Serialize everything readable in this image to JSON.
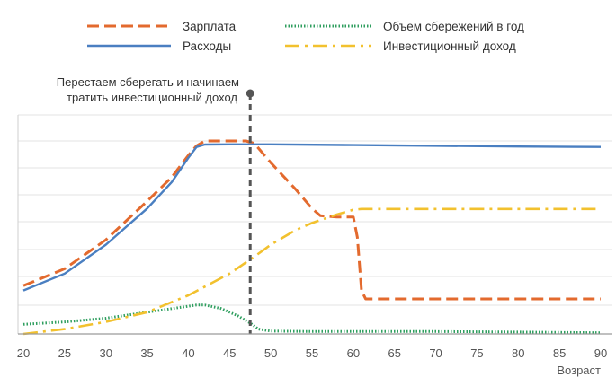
{
  "chart_data": {
    "type": "line",
    "xlabel": "Возраст",
    "ylabel": "",
    "xlim": [
      20,
      91
    ],
    "x_ticks": [
      20,
      25,
      30,
      35,
      40,
      45,
      50,
      55,
      60,
      65,
      70,
      75,
      80,
      85,
      90
    ],
    "ylim": [
      0,
      8
    ],
    "grid": true,
    "legend_position": "top",
    "annotation": {
      "x": 47.5,
      "text_lines": [
        "Перестаем сберегать и начинаем",
        "тратить инвестиционный доход"
      ]
    },
    "series": [
      {
        "name": "Зарплата",
        "color": "#e36a2e",
        "style": "dashed",
        "x": [
          20,
          25,
          30,
          35,
          38,
          40,
          41,
          42,
          45,
          47,
          48,
          50,
          53,
          55,
          56,
          58,
          60,
          60.5,
          61,
          61.5,
          65,
          70,
          80,
          90
        ],
        "y": [
          2.0,
          2.7,
          3.9,
          5.5,
          6.5,
          7.4,
          7.8,
          8.0,
          8.0,
          8.0,
          7.9,
          7.1,
          6.0,
          5.2,
          4.9,
          4.85,
          4.85,
          4.0,
          1.8,
          1.45,
          1.45,
          1.45,
          1.45,
          1.45
        ]
      },
      {
        "name": "Расходы",
        "color": "#4a7fc1",
        "style": "solid",
        "x": [
          20,
          25,
          30,
          35,
          38,
          40,
          41,
          42,
          45,
          50,
          60,
          70,
          80,
          90
        ],
        "y": [
          1.8,
          2.5,
          3.7,
          5.2,
          6.3,
          7.3,
          7.75,
          7.85,
          7.86,
          7.86,
          7.83,
          7.8,
          7.77,
          7.75
        ]
      },
      {
        "name": "Объем сбережений в год",
        "color": "#2e9e5e",
        "style": "dotted",
        "x": [
          20,
          25,
          30,
          35,
          38,
          40,
          41,
          42,
          44,
          46,
          47.5,
          48.5,
          50,
          55,
          60,
          70,
          80,
          90
        ],
        "y": [
          0.4,
          0.5,
          0.65,
          0.9,
          1.05,
          1.15,
          1.2,
          1.2,
          1.05,
          0.75,
          0.45,
          0.2,
          0.12,
          0.1,
          0.1,
          0.1,
          0.08,
          0.05
        ]
      },
      {
        "name": "Инвестиционный доход",
        "color": "#f2c12e",
        "style": "dashdot",
        "x": [
          20,
          25,
          30,
          35,
          40,
          45,
          48,
          50,
          53,
          55,
          58,
          60,
          61,
          65,
          70,
          80,
          90
        ],
        "y": [
          0.0,
          0.2,
          0.5,
          0.9,
          1.6,
          2.5,
          3.2,
          3.7,
          4.3,
          4.6,
          4.95,
          5.15,
          5.18,
          5.18,
          5.18,
          5.18,
          5.18
        ]
      }
    ]
  }
}
